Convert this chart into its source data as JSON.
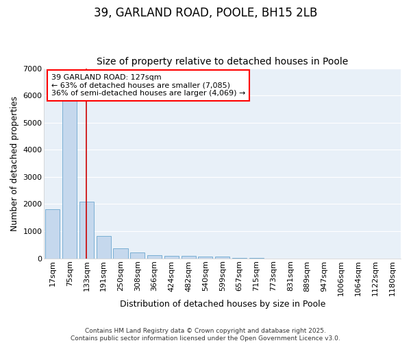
{
  "title1": "39, GARLAND ROAD, POOLE, BH15 2LB",
  "title2": "Size of property relative to detached houses in Poole",
  "xlabel": "Distribution of detached houses by size in Poole",
  "ylabel": "Number of detached properties",
  "categories": [
    "17sqm",
    "75sqm",
    "133sqm",
    "191sqm",
    "250sqm",
    "308sqm",
    "366sqm",
    "424sqm",
    "482sqm",
    "540sqm",
    "599sqm",
    "657sqm",
    "715sqm",
    "773sqm",
    "831sqm",
    "889sqm",
    "947sqm",
    "1006sqm",
    "1064sqm",
    "1122sqm",
    "1180sqm"
  ],
  "values": [
    1800,
    5800,
    2100,
    820,
    360,
    220,
    120,
    95,
    80,
    65,
    60,
    15,
    8,
    4,
    2,
    1,
    0,
    0,
    0,
    0,
    0
  ],
  "bar_color": "#c5d8ed",
  "bar_edge_color": "#7aafd4",
  "vline_x_index": 2,
  "vline_color": "#cc0000",
  "annotation_text": "39 GARLAND ROAD: 127sqm\n← 63% of detached houses are smaller (7,085)\n36% of semi-detached houses are larger (4,069) →",
  "ylim": [
    0,
    7000
  ],
  "yticks": [
    0,
    1000,
    2000,
    3000,
    4000,
    5000,
    6000,
    7000
  ],
  "footnote1": "Contains HM Land Registry data © Crown copyright and database right 2025.",
  "footnote2": "Contains public sector information licensed under the Open Government Licence v3.0.",
  "bg_color": "#ffffff",
  "plot_bg_color": "#e8f0f8",
  "grid_color": "#ffffff",
  "title1_fontsize": 12,
  "title2_fontsize": 10,
  "axis_label_fontsize": 9,
  "tick_fontsize": 8,
  "annot_fontsize": 8,
  "footnote_fontsize": 6.5
}
